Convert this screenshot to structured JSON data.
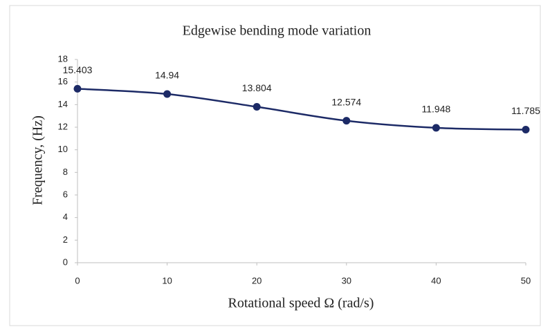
{
  "chart_data": {
    "type": "line",
    "title": "Edgewise bending mode variation",
    "x_label": "Rotational speed Ω (rad/s)",
    "y_label": "Frequency, (Hz)",
    "x": [
      0,
      10,
      20,
      30,
      40,
      50
    ],
    "series": [
      {
        "name": "Edgewise bending",
        "color": "#1c2a66",
        "values": [
          15.403,
          14.94,
          13.804,
          12.574,
          11.948,
          11.785
        ]
      }
    ],
    "xlim": [
      0,
      50
    ],
    "xticks": [
      0,
      10,
      20,
      30,
      40,
      50
    ],
    "ylim": [
      0,
      18
    ],
    "yticks": [
      0,
      2,
      4,
      6,
      8,
      10,
      12,
      14,
      16,
      18
    ],
    "grid": false,
    "smooth": true
  }
}
